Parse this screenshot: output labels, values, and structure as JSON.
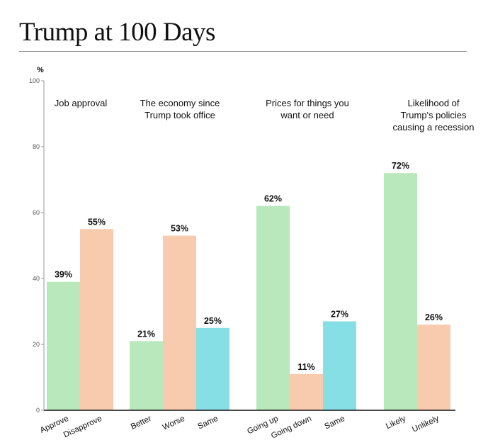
{
  "header": {
    "title": "Trump at 100 Days"
  },
  "chart_data": {
    "type": "bar",
    "ylabel": "%",
    "ylim": [
      0,
      100
    ],
    "yticks": [
      0,
      20,
      40,
      60,
      80,
      100
    ],
    "colors": {
      "positive": "#b9e8bd",
      "negative": "#f9cbae",
      "neutral": "#86dfe5"
    },
    "groups": [
      {
        "title": [
          "Job approval"
        ],
        "bars": [
          {
            "category": "Approve",
            "value": 39,
            "label": "39%",
            "kind": "positive"
          },
          {
            "category": "Disapprove",
            "value": 55,
            "label": "55%",
            "kind": "negative"
          }
        ]
      },
      {
        "title": [
          "The economy since",
          "Trump took office"
        ],
        "bars": [
          {
            "category": "Better",
            "value": 21,
            "label": "21%",
            "kind": "positive"
          },
          {
            "category": "Worse",
            "value": 53,
            "label": "53%",
            "kind": "negative"
          },
          {
            "category": "Same",
            "value": 25,
            "label": "25%",
            "kind": "neutral"
          }
        ]
      },
      {
        "title": [
          "Prices for things you",
          "want or need"
        ],
        "bars": [
          {
            "category": "Going up",
            "value": 62,
            "label": "62%",
            "kind": "positive"
          },
          {
            "category": "Going down",
            "value": 11,
            "label": "11%",
            "kind": "negative"
          },
          {
            "category": "Same",
            "value": 27,
            "label": "27%",
            "kind": "neutral"
          }
        ]
      },
      {
        "title": [
          "Likelihood of",
          "Trump's policies",
          "causing a recession"
        ],
        "bars": [
          {
            "category": "Likely",
            "value": 72,
            "label": "72%",
            "kind": "positive"
          },
          {
            "category": "Unlikely",
            "value": 26,
            "label": "26%",
            "kind": "negative"
          }
        ]
      }
    ]
  }
}
